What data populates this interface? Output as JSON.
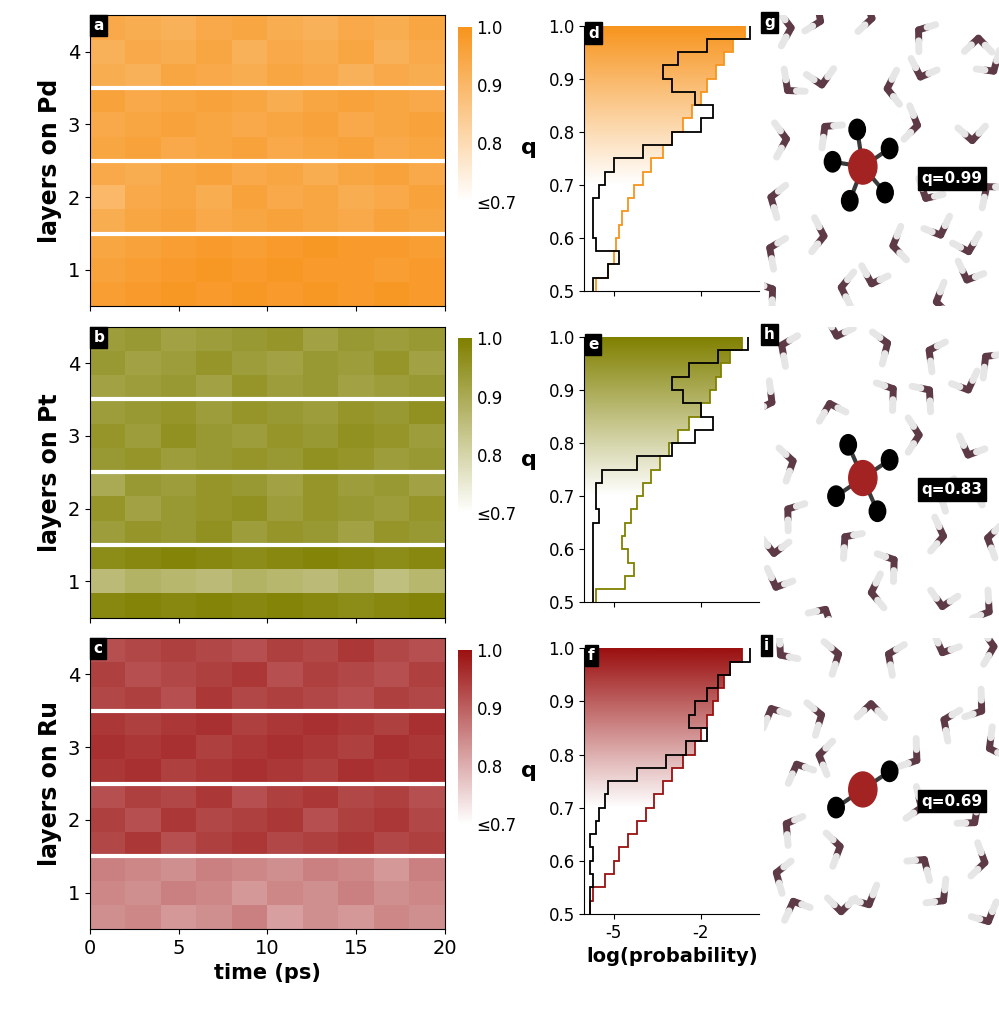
{
  "chart_data": [
    {
      "type": "heatmap",
      "panel": "a",
      "ylabel": "layers on Pd",
      "xlim": [
        0,
        20
      ],
      "xticks": [
        0,
        5,
        10,
        15,
        20
      ],
      "tick_labels": "y",
      "categories": [
        "1",
        "2",
        "3",
        "4"
      ],
      "color": "#f7941d",
      "colorbar": {
        "range": [
          0.7,
          1.0
        ],
        "ticks": [
          1.0,
          0.9,
          0.8,
          {
            "value": 0.7,
            "label": "≤0.7"
          }
        ]
      },
      "cells": [
        [
          0.97,
          0.98,
          0.99,
          0.98,
          0.99,
          0.98,
          0.99,
          0.98,
          0.99,
          0.98
        ],
        [
          0.96,
          0.97,
          0.98,
          0.99,
          0.98,
          0.99,
          0.98,
          0.98,
          0.97,
          0.98
        ],
        [
          0.95,
          0.96,
          0.97,
          0.98,
          0.97,
          0.98,
          0.99,
          0.98,
          0.98,
          0.97
        ],
        [
          0.93,
          0.95,
          0.96,
          0.94,
          0.95,
          0.96,
          0.95,
          0.94,
          0.96,
          0.95
        ],
        [
          0.9,
          0.94,
          0.95,
          0.93,
          0.96,
          0.94,
          0.95,
          0.93,
          0.94,
          0.96
        ],
        [
          0.94,
          0.93,
          0.95,
          0.96,
          0.94,
          0.95,
          0.93,
          0.95,
          0.96,
          0.94
        ],
        [
          0.95,
          0.96,
          0.94,
          0.95,
          0.96,
          0.94,
          0.95,
          0.96,
          0.94,
          0.95
        ],
        [
          0.94,
          0.95,
          0.96,
          0.95,
          0.94,
          0.95,
          0.96,
          0.94,
          0.95,
          0.96
        ],
        [
          0.96,
          0.94,
          0.95,
          0.96,
          0.95,
          0.93,
          0.95,
          0.96,
          0.95,
          0.94
        ],
        [
          0.93,
          0.92,
          0.95,
          0.94,
          0.93,
          0.95,
          0.94,
          0.92,
          0.94,
          0.93
        ],
        [
          0.92,
          0.94,
          0.93,
          0.95,
          0.92,
          0.94,
          0.93,
          0.95,
          0.92,
          0.94
        ],
        [
          0.94,
          0.93,
          0.92,
          0.94,
          0.95,
          0.93,
          0.92,
          0.94,
          0.93,
          0.95
        ]
      ]
    },
    {
      "type": "heatmap",
      "panel": "b",
      "ylabel": "layers on Pt",
      "xlim": [
        0,
        20
      ],
      "xticks": [
        0,
        5,
        10,
        15,
        20
      ],
      "tick_labels": "y",
      "categories": [
        "1",
        "2",
        "3",
        "4"
      ],
      "color": "#808000",
      "colorbar": {
        "range": [
          0.7,
          1.0
        ],
        "ticks": [
          1.0,
          0.9,
          0.8,
          {
            "value": 0.7,
            "label": "≤0.7"
          }
        ]
      },
      "cells": [
        [
          0.98,
          0.99,
          0.98,
          0.99,
          0.98,
          0.99,
          0.98,
          0.97,
          0.98,
          0.99
        ],
        [
          0.86,
          0.88,
          0.87,
          0.86,
          0.88,
          0.87,
          0.86,
          0.88,
          0.85,
          0.87
        ],
        [
          0.97,
          0.98,
          0.99,
          0.98,
          0.97,
          0.98,
          0.99,
          0.98,
          0.97,
          0.98
        ],
        [
          0.93,
          0.95,
          0.94,
          0.96,
          0.93,
          0.95,
          0.94,
          0.92,
          0.95,
          0.94
        ],
        [
          0.95,
          0.92,
          0.94,
          0.95,
          0.96,
          0.93,
          0.95,
          0.94,
          0.93,
          0.95
        ],
        [
          0.9,
          0.94,
          0.93,
          0.95,
          0.94,
          0.92,
          0.95,
          0.93,
          0.94,
          0.92
        ],
        [
          0.94,
          0.95,
          0.93,
          0.94,
          0.95,
          0.94,
          0.96,
          0.95,
          0.93,
          0.94
        ],
        [
          0.95,
          0.93,
          0.96,
          0.94,
          0.93,
          0.95,
          0.94,
          0.96,
          0.95,
          0.93
        ],
        [
          0.93,
          0.94,
          0.95,
          0.93,
          0.95,
          0.94,
          0.93,
          0.95,
          0.94,
          0.96
        ],
        [
          0.92,
          0.93,
          0.94,
          0.92,
          0.95,
          0.93,
          0.94,
          0.92,
          0.93,
          0.94
        ],
        [
          0.94,
          0.92,
          0.93,
          0.95,
          0.93,
          0.92,
          0.94,
          0.93,
          0.95,
          0.92
        ],
        [
          0.93,
          0.94,
          0.92,
          0.93,
          0.94,
          0.95,
          0.92,
          0.94,
          0.93,
          0.94
        ]
      ]
    },
    {
      "type": "heatmap",
      "panel": "c",
      "ylabel": "layers on Ru",
      "xlabel": "time (ps)",
      "xlim": [
        0,
        20
      ],
      "xticks": [
        0,
        5,
        10,
        15,
        20
      ],
      "categories": [
        "1",
        "2",
        "3",
        "4"
      ],
      "color": "#9b1010",
      "colorbar": {
        "range": [
          0.7,
          1.0
        ],
        "ticks": [
          1.0,
          0.9,
          0.8,
          {
            "value": 0.7,
            "label": "≤0.7"
          }
        ]
      },
      "cells": [
        [
          0.84,
          0.85,
          0.83,
          0.84,
          0.86,
          0.82,
          0.84,
          0.83,
          0.85,
          0.84
        ],
        [
          0.85,
          0.84,
          0.86,
          0.85,
          0.83,
          0.85,
          0.84,
          0.86,
          0.84,
          0.85
        ],
        [
          0.86,
          0.85,
          0.84,
          0.86,
          0.85,
          0.84,
          0.86,
          0.85,
          0.83,
          0.86
        ],
        [
          0.93,
          0.95,
          0.92,
          0.94,
          0.95,
          0.93,
          0.94,
          0.95,
          0.93,
          0.94
        ],
        [
          0.94,
          0.92,
          0.95,
          0.93,
          0.94,
          0.95,
          0.92,
          0.94,
          0.95,
          0.93
        ],
        [
          0.92,
          0.94,
          0.93,
          0.95,
          0.92,
          0.94,
          0.95,
          0.93,
          0.94,
          0.92
        ],
        [
          0.95,
          0.96,
          0.94,
          0.95,
          0.96,
          0.95,
          0.94,
          0.96,
          0.95,
          0.96
        ],
        [
          0.96,
          0.95,
          0.96,
          0.94,
          0.95,
          0.96,
          0.95,
          0.94,
          0.96,
          0.95
        ],
        [
          0.95,
          0.94,
          0.95,
          0.96,
          0.94,
          0.95,
          0.96,
          0.95,
          0.94,
          0.96
        ],
        [
          0.93,
          0.94,
          0.92,
          0.95,
          0.93,
          0.94,
          0.93,
          0.92,
          0.94,
          0.93
        ],
        [
          0.94,
          0.92,
          0.93,
          0.94,
          0.95,
          0.92,
          0.94,
          0.93,
          0.92,
          0.94
        ],
        [
          0.92,
          0.93,
          0.94,
          0.93,
          0.92,
          0.94,
          0.93,
          0.95,
          0.93,
          0.92
        ]
      ]
    },
    {
      "type": "histogram",
      "panel": "d",
      "orientation": "horizontal",
      "ylabel": "q",
      "tick_labels": "y",
      "xlim": [
        -6,
        0
      ],
      "xticks": [
        -5,
        -2
      ],
      "ylim": [
        0.5,
        1.0
      ],
      "yticks": [
        0.5,
        0.6,
        0.7,
        0.8,
        0.9,
        1.0
      ],
      "bins": [
        0.5,
        0.525,
        0.55,
        0.575,
        0.6,
        0.625,
        0.65,
        0.675,
        0.7,
        0.725,
        0.75,
        0.775,
        0.8,
        0.825,
        0.85,
        0.875,
        0.9,
        0.925,
        0.95,
        0.975,
        1.0
      ],
      "series": [
        {
          "type": "area",
          "color": "#f7941d",
          "values": [
            -5.6,
            -5.2,
            -5.0,
            -4.9,
            -4.8,
            -4.7,
            -4.5,
            -4.3,
            -4.0,
            -3.7,
            -3.3,
            -3.0,
            -2.6,
            -2.3,
            -2.0,
            -1.8,
            -1.5,
            -1.2,
            -0.9,
            -0.5
          ]
        },
        {
          "type": "line",
          "color": "#000000",
          "values": [
            -5.7,
            -5.2,
            -4.8,
            -5.6,
            -5.7,
            -5.7,
            -5.7,
            -5.5,
            -5.3,
            -5.0,
            -4.0,
            -3.0,
            -2.0,
            -1.6,
            -2.2,
            -3.0,
            -3.3,
            -2.8,
            -1.8,
            -0.3
          ]
        }
      ]
    },
    {
      "type": "histogram",
      "panel": "e",
      "orientation": "horizontal",
      "ylabel": "q",
      "tick_labels": "y",
      "xlim": [
        -6,
        0
      ],
      "xticks": [
        -5,
        -2
      ],
      "ylim": [
        0.5,
        1.0
      ],
      "yticks": [
        0.5,
        0.6,
        0.7,
        0.8,
        0.9,
        1.0
      ],
      "bins": [
        0.5,
        0.525,
        0.55,
        0.575,
        0.6,
        0.625,
        0.65,
        0.675,
        0.7,
        0.725,
        0.75,
        0.775,
        0.8,
        0.825,
        0.85,
        0.875,
        0.9,
        0.925,
        0.95,
        0.975,
        1.0
      ],
      "series": [
        {
          "type": "area",
          "color": "#808000",
          "values": [
            -5.6,
            -4.6,
            -4.3,
            -4.5,
            -4.7,
            -4.6,
            -4.4,
            -4.2,
            -4.0,
            -3.7,
            -3.4,
            -3.1,
            -2.8,
            -2.4,
            -2.0,
            -1.7,
            -1.5,
            -1.3,
            -1.0,
            -0.6
          ]
        },
        {
          "type": "line",
          "color": "#000000",
          "values": [
            -5.7,
            -5.7,
            -5.7,
            -5.7,
            -5.7,
            -5.7,
            -5.5,
            -5.6,
            -5.6,
            -5.4,
            -4.2,
            -3.0,
            -2.2,
            -1.6,
            -2.0,
            -2.6,
            -3.0,
            -2.4,
            -1.4,
            -0.4
          ]
        }
      ]
    },
    {
      "type": "histogram",
      "panel": "f",
      "orientation": "horizontal",
      "ylabel": "q",
      "xlabel": "log(probability)",
      "xlim": [
        -6,
        0
      ],
      "xticks": [
        -5,
        -2
      ],
      "ylim": [
        0.5,
        1.0
      ],
      "yticks": [
        0.5,
        0.6,
        0.7,
        0.8,
        0.9,
        1.0
      ],
      "bins": [
        0.5,
        0.525,
        0.55,
        0.575,
        0.6,
        0.625,
        0.65,
        0.675,
        0.7,
        0.725,
        0.75,
        0.775,
        0.8,
        0.825,
        0.85,
        0.875,
        0.9,
        0.925,
        0.95,
        0.975,
        1.0
      ],
      "series": [
        {
          "type": "area",
          "color": "#9b1010",
          "values": [
            -5.8,
            -5.7,
            -5.3,
            -5.0,
            -4.8,
            -4.5,
            -4.2,
            -3.9,
            -3.6,
            -3.3,
            -3.0,
            -2.6,
            -2.2,
            -2.0,
            -1.8,
            -1.6,
            -1.4,
            -1.2,
            -1.0,
            -0.6
          ]
        },
        {
          "type": "line",
          "color": "#000000",
          "values": [
            -5.8,
            -5.8,
            -5.7,
            -5.8,
            -5.7,
            -5.8,
            -5.6,
            -5.5,
            -5.3,
            -5.2,
            -4.2,
            -3.2,
            -2.5,
            -1.8,
            -2.4,
            -2.2,
            -1.8,
            -1.4,
            -1.0,
            -0.3
          ]
        }
      ]
    },
    {
      "type": "diagram",
      "panel": "g",
      "annotation": "q=0.99"
    },
    {
      "type": "diagram",
      "panel": "h",
      "annotation": "q=0.83"
    },
    {
      "type": "diagram",
      "panel": "i",
      "annotation": "q=0.69"
    }
  ]
}
